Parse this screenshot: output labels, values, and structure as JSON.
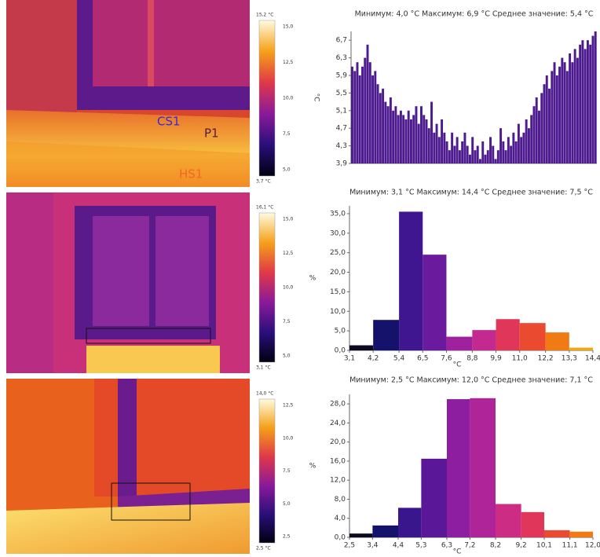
{
  "chart_data": [
    {
      "type": "bar",
      "title": "Минимум: 4,0 °C Максимум: 6,9 °C Среднее значение: 5,4 °C",
      "y_label": "°C",
      "color": "#4d1a8f",
      "values": [
        6.1,
        6.0,
        6.2,
        5.9,
        6.1,
        6.3,
        6.6,
        6.2,
        5.9,
        6.0,
        5.7,
        5.5,
        5.6,
        5.3,
        5.2,
        5.4,
        5.1,
        5.2,
        5.0,
        5.1,
        5.0,
        4.9,
        5.1,
        4.9,
        5.0,
        5.2,
        4.8,
        5.2,
        5.0,
        4.9,
        4.7,
        5.3,
        4.6,
        4.8,
        4.5,
        4.9,
        4.6,
        4.4,
        4.2,
        4.6,
        4.3,
        4.5,
        4.2,
        4.4,
        4.6,
        4.3,
        4.1,
        4.5,
        4.2,
        4.3,
        4.0,
        4.4,
        4.1,
        4.2,
        4.5,
        4.3,
        4.0,
        4.2,
        4.7,
        4.4,
        4.2,
        4.5,
        4.3,
        4.6,
        4.4,
        4.8,
        4.5,
        4.6,
        4.9,
        4.7,
        5.0,
        5.2,
        5.4,
        5.1,
        5.5,
        5.7,
        5.9,
        5.6,
        6.0,
        6.2,
        5.9,
        6.1,
        6.3,
        6.2,
        6.0,
        6.4,
        6.2,
        6.5,
        6.3,
        6.6,
        6.7,
        6.5,
        6.7,
        6.6,
        6.8,
        6.9
      ],
      "ylim": [
        3.9,
        6.9
      ],
      "yticks": [
        {
          "value": 3.9,
          "label": "3,9"
        },
        {
          "value": 4.3,
          "label": "4,3"
        },
        {
          "value": 4.7,
          "label": "4,7"
        },
        {
          "value": 5.1,
          "label": "5,1"
        },
        {
          "value": 5.5,
          "label": "5,5"
        },
        {
          "value": 5.9,
          "label": "5,9"
        },
        {
          "value": 6.3,
          "label": "6,3"
        },
        {
          "value": 6.7,
          "label": "6,7"
        }
      ]
    },
    {
      "type": "histogram",
      "title": "Минимум: 3,1 °C Максимум: 14,4 °C Среднее значение: 7,5 °C",
      "y_label": "%",
      "x_label": "°C",
      "bins": [
        3.1,
        4.2,
        5.4,
        6.5,
        7.6,
        8.8,
        9.9,
        11.0,
        12.2,
        13.3,
        14.4
      ],
      "values": [
        1.3,
        7.8,
        35.5,
        24.5,
        3.5,
        5.2,
        8.0,
        7.0,
        4.6,
        0.7
      ],
      "colors": [
        "#0c0a1e",
        "#14126a",
        "#3f168f",
        "#6a1a9c",
        "#a0219e",
        "#c42990",
        "#e0365a",
        "#ea4a30",
        "#f07a14",
        "#f5a60c"
      ],
      "xlim": [
        3.1,
        14.4
      ],
      "ylim": [
        0,
        37
      ],
      "xticks": [
        {
          "value": 3.1,
          "label": "3,1"
        },
        {
          "value": 4.2,
          "label": "4,2"
        },
        {
          "value": 5.4,
          "label": "5,4"
        },
        {
          "value": 6.5,
          "label": "6,5"
        },
        {
          "value": 7.6,
          "label": "7,6"
        },
        {
          "value": 8.8,
          "label": "8,8"
        },
        {
          "value": 9.9,
          "label": "9,9"
        },
        {
          "value": 11.0,
          "label": "11,0"
        },
        {
          "value": 12.2,
          "label": "12,2"
        },
        {
          "value": 13.3,
          "label": "13,3"
        },
        {
          "value": 14.4,
          "label": "14,4"
        }
      ],
      "yticks": [
        {
          "value": 0,
          "label": "0,0"
        },
        {
          "value": 5,
          "label": "5,0"
        },
        {
          "value": 10,
          "label": "10,0"
        },
        {
          "value": 15,
          "label": "15,0"
        },
        {
          "value": 20,
          "label": "20,0"
        },
        {
          "value": 25,
          "label": "25,0"
        },
        {
          "value": 30,
          "label": "30,0"
        },
        {
          "value": 35,
          "label": "35,0"
        }
      ]
    },
    {
      "type": "histogram",
      "title": "Минимум: 2,5 °C Максимум: 12,0 °C Среднее значение: 7,1 °C",
      "y_label": "%",
      "x_label": "°C",
      "bins": [
        2.5,
        3.4,
        4.4,
        5.3,
        6.3,
        7.2,
        8.2,
        9.2,
        10.1,
        11.1,
        12.0
      ],
      "values": [
        0.8,
        2.5,
        6.2,
        16.5,
        29.0,
        29.2,
        7.0,
        5.3,
        1.5,
        1.2
      ],
      "colors": [
        "#0c0a1e",
        "#14126a",
        "#3a168c",
        "#5a1898",
        "#8e1ea0",
        "#b0249a",
        "#cc2c84",
        "#e0365a",
        "#ea4a30",
        "#f07a14"
      ],
      "xlim": [
        2.5,
        12.0
      ],
      "ylim": [
        0,
        30
      ],
      "xticks": [
        {
          "value": 2.5,
          "label": "2,5"
        },
        {
          "value": 3.4,
          "label": "3,4"
        },
        {
          "value": 4.4,
          "label": "4,4"
        },
        {
          "value": 5.3,
          "label": "5,3"
        },
        {
          "value": 6.3,
          "label": "6,3"
        },
        {
          "value": 7.2,
          "label": "7,2"
        },
        {
          "value": 8.2,
          "label": "8,2"
        },
        {
          "value": 9.2,
          "label": "9,2"
        },
        {
          "value": 10.1,
          "label": "10,1"
        },
        {
          "value": 11.1,
          "label": "11,1"
        },
        {
          "value": 12.0,
          "label": "12,0"
        }
      ],
      "yticks": [
        {
          "value": 0,
          "label": "0,0"
        },
        {
          "value": 4,
          "label": "4,0"
        },
        {
          "value": 8,
          "label": "8,0"
        },
        {
          "value": 12,
          "label": "12,0"
        },
        {
          "value": 16,
          "label": "16,0"
        },
        {
          "value": 20,
          "label": "20,0"
        },
        {
          "value": 24,
          "label": "24,0"
        },
        {
          "value": 28,
          "label": "28,0"
        }
      ]
    }
  ],
  "thermal_images": [
    {
      "scale_top": "15,2 °C",
      "scale_bottom": "3,7 °C",
      "scale_ticks": [
        "15,0",
        "12,5",
        "10,0",
        "7,5",
        "5,0"
      ],
      "markers": [
        "CS1",
        "P1",
        "HS1"
      ]
    },
    {
      "scale_top": "16,1 °C",
      "scale_bottom": "3,1 °C",
      "scale_ticks": [
        "15,0",
        "12,5",
        "10,0",
        "7,5",
        "5,0"
      ]
    },
    {
      "scale_top": "14,0 °C",
      "scale_bottom": "2,5 °C",
      "scale_ticks": [
        "12,5",
        "10,0",
        "7,5",
        "5,0",
        "2,5"
      ]
    }
  ]
}
